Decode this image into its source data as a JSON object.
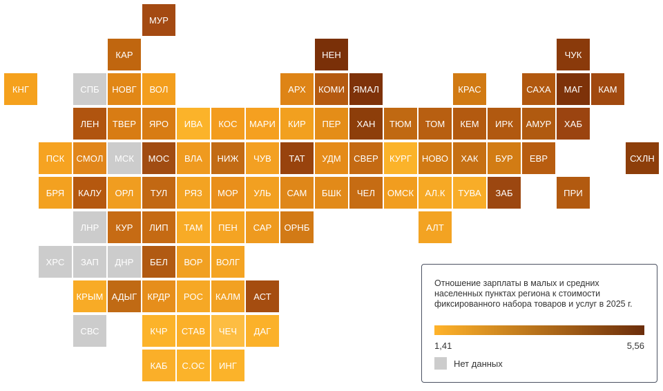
{
  "legend": {
    "title": "Отношение зарплаты в малых и средних населенных пунктах региона к стоимости фиксированного набора товаров и услуг в 2025 г.",
    "min_label": "1,41",
    "max_label": "5,56",
    "no_data_label": "Нет данных",
    "gradient_start": "#ffb32a",
    "gradient_end": "#6b2d0b",
    "no_data_color": "#cccccc"
  },
  "regions": [
    {
      "label": "МУР",
      "row": 0,
      "col": 4,
      "color": "#a44a12"
    },
    {
      "label": "КАР",
      "row": 1,
      "col": 3,
      "color": "#c0660f"
    },
    {
      "label": "НЕН",
      "row": 1,
      "col": 9,
      "color": "#7a3008"
    },
    {
      "label": "ЧУК",
      "row": 1,
      "col": 16,
      "color": "#8a3a0b"
    },
    {
      "label": "КНГ",
      "row": 2,
      "col": 0,
      "color": "#f5a11d"
    },
    {
      "label": "СПБ",
      "row": 2,
      "col": 2,
      "color": "#cccccc"
    },
    {
      "label": "НОВГ",
      "row": 2,
      "col": 3,
      "color": "#e18716"
    },
    {
      "label": "ВОЛ",
      "row": 2,
      "col": 4,
      "color": "#f39e1d"
    },
    {
      "label": "АРХ",
      "row": 2,
      "col": 8,
      "color": "#de8416"
    },
    {
      "label": "КОМИ",
      "row": 2,
      "col": 9,
      "color": "#b55a10"
    },
    {
      "label": "ЯМАЛ",
      "row": 2,
      "col": 10,
      "color": "#7e3209"
    },
    {
      "label": "КРАС",
      "row": 2,
      "col": 13,
      "color": "#d17a13"
    },
    {
      "label": "САХА",
      "row": 2,
      "col": 15,
      "color": "#b1580f"
    },
    {
      "label": "МАГ",
      "row": 2,
      "col": 16,
      "color": "#7d3209"
    },
    {
      "label": "КАМ",
      "row": 2,
      "col": 17,
      "color": "#a1490f"
    },
    {
      "label": "ЛЕН",
      "row": 3,
      "col": 2,
      "color": "#b0540f"
    },
    {
      "label": "ТВЕР",
      "row": 3,
      "col": 3,
      "color": "#d87c14"
    },
    {
      "label": "ЯРО",
      "row": 3,
      "col": 4,
      "color": "#d87c14"
    },
    {
      "label": "ИВА",
      "row": 3,
      "col": 5,
      "color": "#fbb32a"
    },
    {
      "label": "КОС",
      "row": 3,
      "col": 6,
      "color": "#f39c1e"
    },
    {
      "label": "МАРИ",
      "row": 3,
      "col": 7,
      "color": "#f5a020"
    },
    {
      "label": "КИР",
      "row": 3,
      "col": 8,
      "color": "#f2a01f"
    },
    {
      "label": "ПЕР",
      "row": 3,
      "col": 9,
      "color": "#e48d18"
    },
    {
      "label": "ХАН",
      "row": 3,
      "col": 10,
      "color": "#8d3e0a"
    },
    {
      "label": "ТЮМ",
      "row": 3,
      "col": 11,
      "color": "#c06912"
    },
    {
      "label": "ТОМ",
      "row": 3,
      "col": 12,
      "color": "#b85f11"
    },
    {
      "label": "КЕМ",
      "row": 3,
      "col": 13,
      "color": "#b35a10"
    },
    {
      "label": "ИРК",
      "row": 3,
      "col": 14,
      "color": "#b15910"
    },
    {
      "label": "АМУР",
      "row": 3,
      "col": 15,
      "color": "#b05a10"
    },
    {
      "label": "ХАБ",
      "row": 3,
      "col": 16,
      "color": "#9b4410"
    },
    {
      "label": "ПСК",
      "row": 4,
      "col": 1,
      "color": "#f6a321"
    },
    {
      "label": "СМОЛ",
      "row": 4,
      "col": 2,
      "color": "#e1861a"
    },
    {
      "label": "МСК",
      "row": 4,
      "col": 3,
      "color": "#cccccc"
    },
    {
      "label": "МОС",
      "row": 4,
      "col": 4,
      "color": "#a14c12"
    },
    {
      "label": "ВЛА",
      "row": 4,
      "col": 5,
      "color": "#ef9a1f"
    },
    {
      "label": "НИЖ",
      "row": 4,
      "col": 6,
      "color": "#c26b14"
    },
    {
      "label": "ЧУВ",
      "row": 4,
      "col": 7,
      "color": "#f3a022"
    },
    {
      "label": "ТАТ",
      "row": 4,
      "col": 8,
      "color": "#98430d"
    },
    {
      "label": "УДМ",
      "row": 4,
      "col": 9,
      "color": "#e58b19"
    },
    {
      "label": "СВЕР",
      "row": 4,
      "col": 10,
      "color": "#c46a13"
    },
    {
      "label": "КУРГ",
      "row": 4,
      "col": 11,
      "color": "#fbb32a"
    },
    {
      "label": "НОВО",
      "row": 4,
      "col": 12,
      "color": "#d17a14"
    },
    {
      "label": "ХАК",
      "row": 4,
      "col": 13,
      "color": "#c67013"
    },
    {
      "label": "БУР",
      "row": 4,
      "col": 14,
      "color": "#d27c14"
    },
    {
      "label": "ЕВР",
      "row": 4,
      "col": 15,
      "color": "#b85d10"
    },
    {
      "label": "СХЛН",
      "row": 4,
      "col": 18,
      "color": "#8d3e0a"
    },
    {
      "label": "БРЯ",
      "row": 5,
      "col": 1,
      "color": "#f3a120"
    },
    {
      "label": "КАЛУ",
      "row": 5,
      "col": 2,
      "color": "#b5580f"
    },
    {
      "label": "ОРЛ",
      "row": 5,
      "col": 3,
      "color": "#f09d20"
    },
    {
      "label": "ТУЛ",
      "row": 5,
      "col": 4,
      "color": "#c26813"
    },
    {
      "label": "РЯЗ",
      "row": 5,
      "col": 5,
      "color": "#f3a322"
    },
    {
      "label": "МОР",
      "row": 5,
      "col": 6,
      "color": "#e98f1b"
    },
    {
      "label": "УЛЬ",
      "row": 5,
      "col": 7,
      "color": "#f2a021"
    },
    {
      "label": "САМ",
      "row": 5,
      "col": 8,
      "color": "#df8719"
    },
    {
      "label": "БШК",
      "row": 5,
      "col": 9,
      "color": "#e28a19"
    },
    {
      "label": "ЧЕЛ",
      "row": 5,
      "col": 10,
      "color": "#c66c13"
    },
    {
      "label": "ОМСК",
      "row": 5,
      "col": 11,
      "color": "#f19d1f"
    },
    {
      "label": "АЛ.К",
      "row": 5,
      "col": 12,
      "color": "#f6a925"
    },
    {
      "label": "ТУВА",
      "row": 5,
      "col": 13,
      "color": "#f8ad28"
    },
    {
      "label": "ЗАБ",
      "row": 5,
      "col": 14,
      "color": "#9c4710"
    },
    {
      "label": "ПРИ",
      "row": 5,
      "col": 16,
      "color": "#b25a10"
    },
    {
      "label": "ЛНР",
      "row": 6,
      "col": 2,
      "color": "#cccccc"
    },
    {
      "label": "КУР",
      "row": 6,
      "col": 3,
      "color": "#c66b14"
    },
    {
      "label": "ЛИП",
      "row": 6,
      "col": 4,
      "color": "#c56a13"
    },
    {
      "label": "ТАМ",
      "row": 6,
      "col": 5,
      "color": "#f8ab26"
    },
    {
      "label": "ПЕН",
      "row": 6,
      "col": 6,
      "color": "#f5a423"
    },
    {
      "label": "САР",
      "row": 6,
      "col": 7,
      "color": "#ee9a1f"
    },
    {
      "label": "ОРНБ",
      "row": 6,
      "col": 8,
      "color": "#d27a16"
    },
    {
      "label": "АЛТ",
      "row": 6,
      "col": 12,
      "color": "#f3a322"
    },
    {
      "label": "ХРС",
      "row": 7,
      "col": 1,
      "color": "#cccccc"
    },
    {
      "label": "ЗАП",
      "row": 7,
      "col": 2,
      "color": "#cccccc"
    },
    {
      "label": "ДНР",
      "row": 7,
      "col": 3,
      "color": "#cccccc"
    },
    {
      "label": "БЕЛ",
      "row": 7,
      "col": 4,
      "color": "#b15a12"
    },
    {
      "label": "ВОР",
      "row": 7,
      "col": 5,
      "color": "#f1a022"
    },
    {
      "label": "ВОЛГ",
      "row": 7,
      "col": 6,
      "color": "#f4a423"
    },
    {
      "label": "КРЫМ",
      "row": 8,
      "col": 2,
      "color": "#f8ab26"
    },
    {
      "label": "АДЫГ",
      "row": 8,
      "col": 3,
      "color": "#c06a14"
    },
    {
      "label": "КРДР",
      "row": 8,
      "col": 4,
      "color": "#e68e1b"
    },
    {
      "label": "РОС",
      "row": 8,
      "col": 5,
      "color": "#f6a825"
    },
    {
      "label": "КАЛМ",
      "row": 8,
      "col": 6,
      "color": "#f2a122"
    },
    {
      "label": "АСТ",
      "row": 8,
      "col": 7,
      "color": "#a54d10"
    },
    {
      "label": "СВС",
      "row": 9,
      "col": 2,
      "color": "#cccccc"
    },
    {
      "label": "КЧР",
      "row": 9,
      "col": 4,
      "color": "#fcb32a"
    },
    {
      "label": "СТАВ",
      "row": 9,
      "col": 5,
      "color": "#fbb02a"
    },
    {
      "label": "ЧЕЧ",
      "row": 9,
      "col": 6,
      "color": "#fdbd42"
    },
    {
      "label": "ДАГ",
      "row": 9,
      "col": 7,
      "color": "#fbb12a"
    },
    {
      "label": "КАБ",
      "row": 10,
      "col": 4,
      "color": "#faaf29"
    },
    {
      "label": "С.ОС",
      "row": 10,
      "col": 5,
      "color": "#fbb32a"
    },
    {
      "label": "ИНГ",
      "row": 10,
      "col": 6,
      "color": "#fbb32a"
    }
  ]
}
